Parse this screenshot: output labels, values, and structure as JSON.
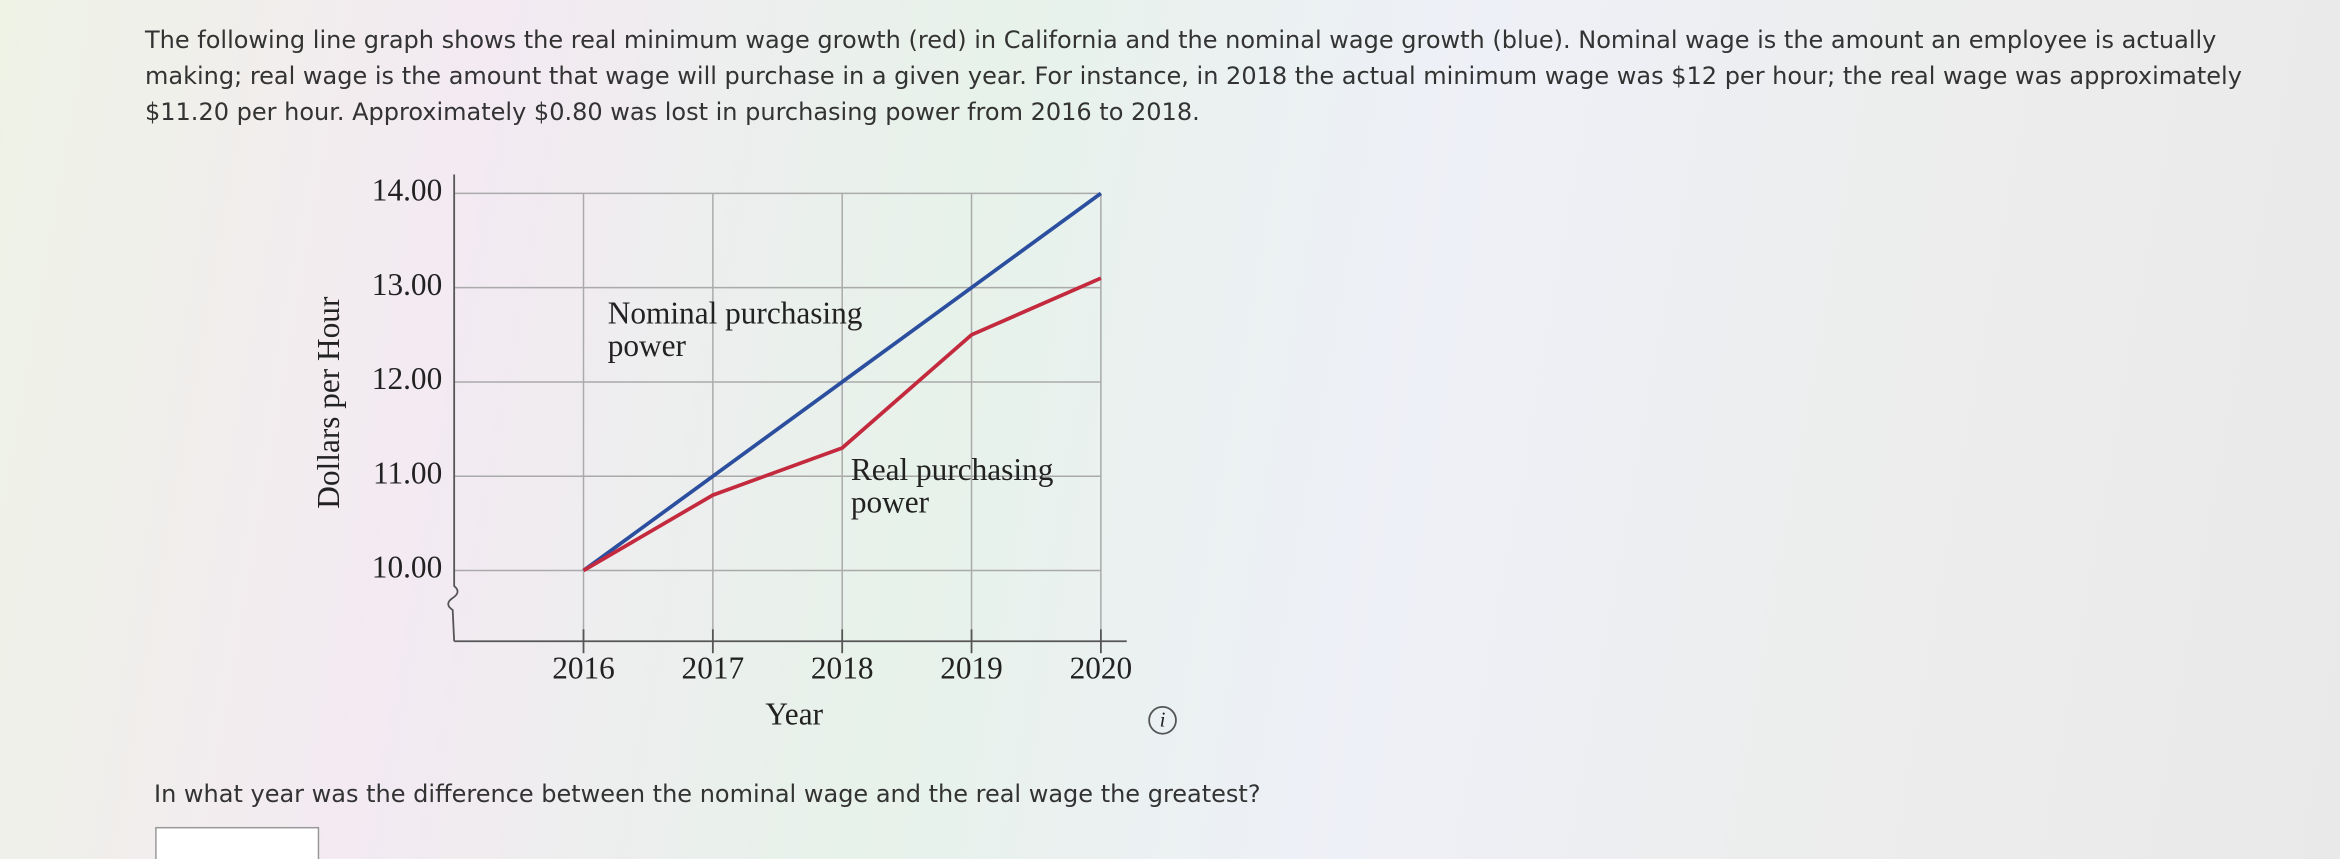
{
  "intro": "The following line graph shows the real minimum wage growth (red) in California and the nominal wage growth (blue). Nominal wage is the amount an employee is actually making; real wage is the amount that wage will purchase in a given year. For instance, in 2018 the actual minimum wage was $12 per hour; the real wage was approximately $11.20 per hour. Approximately $0.80 was lost in purchasing power from 2016 to 2018.",
  "chart_data": {
    "type": "line",
    "x_label": "Year",
    "y_label": "Dollars per Hour",
    "x": [
      2016,
      2017,
      2018,
      2019,
      2020
    ],
    "series": [
      {
        "name": "Nominal purchasing power",
        "color": "#2b4f9e",
        "values": [
          10,
          11,
          12,
          13,
          14
        ]
      },
      {
        "name": "Real purchasing power",
        "color": "#c42a3e",
        "values": [
          10,
          10.8,
          11.3,
          12.5,
          13.1
        ]
      }
    ],
    "annotations": [
      [
        "Nominal purchasing",
        "power"
      ],
      [
        "Real purchasing",
        "power"
      ]
    ],
    "xlim": [
      2015,
      2020.2
    ],
    "ylim": [
      9.25,
      14.2
    ],
    "xticks": [
      2016,
      2017,
      2018,
      2019,
      2020
    ],
    "yticks": [
      {
        "value": 10,
        "label": "10.00"
      },
      {
        "value": 11,
        "label": "11.00"
      },
      {
        "value": 12,
        "label": "12.00"
      },
      {
        "value": 13,
        "label": "13.00"
      },
      {
        "value": 14,
        "label": "14.00"
      }
    ],
    "grid": true
  },
  "info_icon": "i",
  "question": "In what year was the difference between the nominal wage and the real wage the greatest?"
}
